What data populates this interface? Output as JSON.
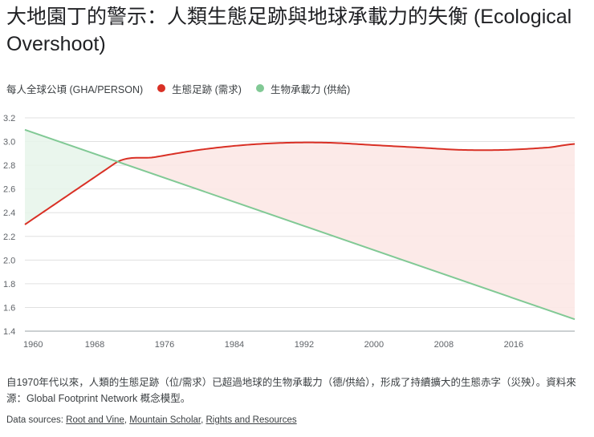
{
  "header": {
    "title": "大地園丁的警示：人類生態足跡與地球承載力的失衡 (Ecological Overshoot)"
  },
  "legend": {
    "unit": "每人全球公頃 (GHA/PERSON)",
    "items": [
      {
        "label": "生態足跡 (需求)",
        "color": "#d93025"
      },
      {
        "label": "生物承載力 (供給)",
        "color": "#81c995"
      }
    ]
  },
  "chart_data": {
    "type": "area",
    "title": "大地園丁的警示：人類生態足跡與地球承載力的失衡 (Ecological Overshoot)",
    "xlabel": "",
    "ylabel": "每人全球公頃 (GHA/PERSON)",
    "xlim": [
      1960,
      2023
    ],
    "ylim": [
      1.4,
      3.2
    ],
    "xticks": [
      1960,
      1968,
      1976,
      1984,
      1992,
      2000,
      2008,
      2016
    ],
    "yticks": [
      1.4,
      1.6,
      1.8,
      2.0,
      2.2,
      2.4,
      2.6,
      2.8,
      3.0,
      3.2
    ],
    "ytick_labels": [
      "1.4",
      "1.6",
      "1.8",
      "2.0",
      "2.2",
      "2.4",
      "2.6",
      "2.8",
      "3.0",
      "3.2"
    ],
    "grid": true,
    "series": [
      {
        "name": "生態足跡 (需求)",
        "color": "#d93025",
        "x": [
          1960,
          1970,
          1975,
          1980,
          1985,
          1990,
          1995,
          2000,
          2005,
          2010,
          2015,
          2020,
          2023
        ],
        "y": [
          2.3,
          2.8,
          2.87,
          2.93,
          2.97,
          2.99,
          2.99,
          2.97,
          2.95,
          2.93,
          2.93,
          2.95,
          2.98
        ]
      },
      {
        "name": "生物承載力 (供給)",
        "color": "#81c995",
        "x": [
          1960,
          2023
        ],
        "y": [
          3.1,
          1.5
        ]
      }
    ],
    "fills": {
      "deficit_color": "#fce8e6",
      "reserve_color": "#e6f4ea"
    }
  },
  "caption": "自1970年代以來，人類的生態足跡（位/需求）已超過地球的生物承載力（德/供給），形成了持續擴大的生態赤字（災殃）。資料來源：Global Footprint Network 概念模型。",
  "sources": {
    "prefix": "Data sources: ",
    "links": [
      "Root and Vine",
      "Mountain Scholar",
      "Rights and Resources"
    ],
    "separator": ", "
  }
}
